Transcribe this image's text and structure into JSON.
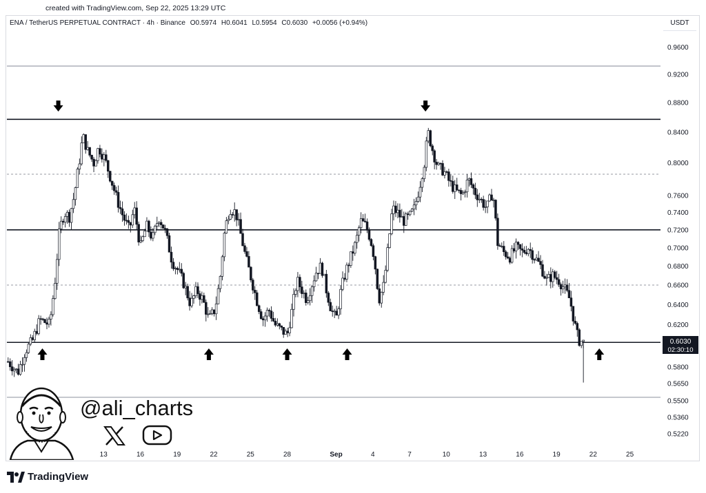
{
  "header": {
    "credit": "created with TradingView.com, Sep 22, 2025 13:29 UTC",
    "symbol": "ENA / TetherUS PERPETUAL CONTRACT · 4h · Binance",
    "open": "O0.5974",
    "high": "H0.6041",
    "low": "L0.5954",
    "close": "C0.6030",
    "change": "+0.0056 (+0.94%)"
  },
  "axis": {
    "currency": "USDT",
    "last_price": "0.6030",
    "countdown": "02:30:10"
  },
  "footer": {
    "brand": "TradingView",
    "handle": "@ali_charts"
  },
  "chart_data": {
    "type": "candlestick",
    "timeframe": "4h",
    "y_scale": "log",
    "y_ticks": [
      0.96,
      0.92,
      0.88,
      0.84,
      0.8,
      0.76,
      0.74,
      0.72,
      0.7,
      0.68,
      0.66,
      0.64,
      0.62,
      0.6,
      0.58,
      0.565,
      0.55,
      0.536,
      0.522
    ],
    "y_tick_labels": [
      "0.9600",
      "0.9200",
      "0.8800",
      "0.8400",
      "0.8000",
      "0.7600",
      "0.7400",
      "0.7200",
      "0.7000",
      "0.6800",
      "0.6600",
      "0.6400",
      "0.6200",
      "0.6000",
      "0.5800",
      "0.5650",
      "0.5500",
      "0.5360",
      "0.5220"
    ],
    "ylim": [
      0.512,
      0.985
    ],
    "x_tick_labels": [
      "7",
      "10",
      "13",
      "16",
      "19",
      "22",
      "25",
      "28",
      "Sep",
      "4",
      "7",
      "10",
      "13",
      "16",
      "19",
      "22",
      "25"
    ],
    "x_tick_days": [
      7,
      10,
      13,
      16,
      19,
      22,
      25,
      28,
      32,
      35,
      38,
      41,
      44,
      47,
      50,
      53,
      56
    ],
    "xlim_days": [
      5.1,
      58.5
    ],
    "levels": [
      {
        "price": 0.932,
        "style": "solid",
        "color": "#b2b5be"
      },
      {
        "price": 0.857,
        "style": "solid",
        "color": "#131722"
      },
      {
        "price": 0.786,
        "style": "dashed",
        "color": "#9598a1"
      },
      {
        "price": 0.72,
        "style": "solid",
        "color": "#131722"
      },
      {
        "price": 0.66,
        "style": "dashed",
        "color": "#9598a1"
      },
      {
        "price": 0.603,
        "style": "solid",
        "color": "#131722"
      },
      {
        "price": 0.553,
        "style": "solid",
        "color": "#b2b5be"
      }
    ],
    "markers": [
      {
        "day": 9.3,
        "dir": "down"
      },
      {
        "day": 39.3,
        "dir": "down"
      },
      {
        "day": 8.0,
        "dir": "up"
      },
      {
        "day": 21.6,
        "dir": "up"
      },
      {
        "day": 28.0,
        "dir": "up"
      },
      {
        "day": 32.9,
        "dir": "up"
      },
      {
        "day": 53.5,
        "dir": "up"
      }
    ],
    "path": [
      [
        5.2,
        0.585
      ],
      [
        6.0,
        0.575
      ],
      [
        6.6,
        0.595
      ],
      [
        7.2,
        0.605
      ],
      [
        7.8,
        0.625
      ],
      [
        8.6,
        0.62
      ],
      [
        9.0,
        0.66
      ],
      [
        9.4,
        0.72
      ],
      [
        9.8,
        0.74
      ],
      [
        10.2,
        0.735
      ],
      [
        10.6,
        0.76
      ],
      [
        11.0,
        0.8
      ],
      [
        11.3,
        0.835
      ],
      [
        11.7,
        0.815
      ],
      [
        12.2,
        0.8
      ],
      [
        12.6,
        0.82
      ],
      [
        13.1,
        0.805
      ],
      [
        13.6,
        0.78
      ],
      [
        14.1,
        0.755
      ],
      [
        14.6,
        0.735
      ],
      [
        15.1,
        0.72
      ],
      [
        15.5,
        0.745
      ],
      [
        16.0,
        0.7
      ],
      [
        16.5,
        0.725
      ],
      [
        17.0,
        0.71
      ],
      [
        17.5,
        0.735
      ],
      [
        18.0,
        0.72
      ],
      [
        18.6,
        0.685
      ],
      [
        19.1,
        0.675
      ],
      [
        19.6,
        0.66
      ],
      [
        20.1,
        0.64
      ],
      [
        20.6,
        0.655
      ],
      [
        21.1,
        0.645
      ],
      [
        21.6,
        0.625
      ],
      [
        22.1,
        0.635
      ],
      [
        22.5,
        0.665
      ],
      [
        22.9,
        0.72
      ],
      [
        23.3,
        0.745
      ],
      [
        23.8,
        0.74
      ],
      [
        24.2,
        0.715
      ],
      [
        24.6,
        0.69
      ],
      [
        25.1,
        0.665
      ],
      [
        25.5,
        0.645
      ],
      [
        26.0,
        0.625
      ],
      [
        26.5,
        0.635
      ],
      [
        27.0,
        0.62
      ],
      [
        27.5,
        0.615
      ],
      [
        28.0,
        0.61
      ],
      [
        28.4,
        0.635
      ],
      [
        28.8,
        0.665
      ],
      [
        29.2,
        0.655
      ],
      [
        29.6,
        0.645
      ],
      [
        30.0,
        0.66
      ],
      [
        30.4,
        0.675
      ],
      [
        30.8,
        0.68
      ],
      [
        31.2,
        0.655
      ],
      [
        31.6,
        0.635
      ],
      [
        32.0,
        0.625
      ],
      [
        32.4,
        0.655
      ],
      [
        32.8,
        0.675
      ],
      [
        33.2,
        0.69
      ],
      [
        33.6,
        0.705
      ],
      [
        34.0,
        0.73
      ],
      [
        34.4,
        0.725
      ],
      [
        34.8,
        0.71
      ],
      [
        35.1,
        0.69
      ],
      [
        35.5,
        0.645
      ],
      [
        35.9,
        0.66
      ],
      [
        36.2,
        0.695
      ],
      [
        36.6,
        0.745
      ],
      [
        37.0,
        0.74
      ],
      [
        37.5,
        0.73
      ],
      [
        38.0,
        0.735
      ],
      [
        38.4,
        0.745
      ],
      [
        38.8,
        0.77
      ],
      [
        39.2,
        0.8
      ],
      [
        39.5,
        0.84
      ],
      [
        39.9,
        0.815
      ],
      [
        40.3,
        0.795
      ],
      [
        40.8,
        0.79
      ],
      [
        41.3,
        0.775
      ],
      [
        41.8,
        0.765
      ],
      [
        42.3,
        0.76
      ],
      [
        42.8,
        0.78
      ],
      [
        43.3,
        0.765
      ],
      [
        43.8,
        0.755
      ],
      [
        44.3,
        0.745
      ],
      [
        44.8,
        0.765
      ],
      [
        45.2,
        0.705
      ],
      [
        45.7,
        0.695
      ],
      [
        46.2,
        0.69
      ],
      [
        46.7,
        0.7
      ],
      [
        47.2,
        0.695
      ],
      [
        47.7,
        0.7
      ],
      [
        48.2,
        0.69
      ],
      [
        48.7,
        0.68
      ],
      [
        49.2,
        0.665
      ],
      [
        49.7,
        0.67
      ],
      [
        50.2,
        0.665
      ],
      [
        50.7,
        0.655
      ],
      [
        51.1,
        0.645
      ],
      [
        51.5,
        0.62
      ],
      [
        51.8,
        0.605
      ],
      [
        52.2,
        0.603
      ]
    ]
  }
}
